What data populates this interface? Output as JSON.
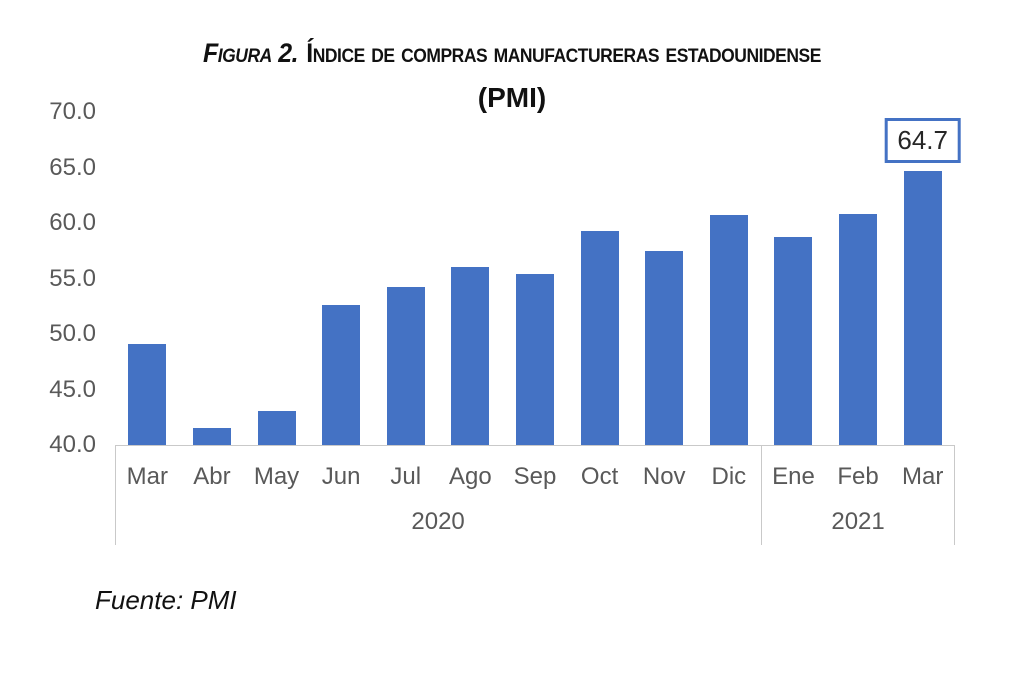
{
  "figure": {
    "title_prefix": "Figura 2.",
    "title_main": "Índice de compras manufactureras estadounidense",
    "subtitle": "(PMI)",
    "source": "Fuente: PMI"
  },
  "chart_data": {
    "type": "bar",
    "title": "Figura 2. Índice de compras manufactureras estadounidense (PMI)",
    "categories": [
      "Mar",
      "Abr",
      "May",
      "Jun",
      "Jul",
      "Ago",
      "Sep",
      "Oct",
      "Nov",
      "Dic",
      "Ene",
      "Feb",
      "Mar"
    ],
    "values": [
      49.1,
      41.5,
      43.1,
      52.6,
      54.2,
      56.0,
      55.4,
      59.3,
      57.5,
      60.7,
      58.7,
      60.8,
      64.7
    ],
    "group_labels": [
      {
        "label": "2020",
        "span": [
          0,
          9
        ]
      },
      {
        "label": "2021",
        "span": [
          10,
          12
        ]
      }
    ],
    "xlabel": "",
    "ylabel": "",
    "ylim": [
      40.0,
      70.0
    ],
    "yticks": [
      70.0,
      65.0,
      60.0,
      55.0,
      50.0,
      45.0,
      40.0
    ],
    "ytick_labels": [
      "70.0",
      "65.0",
      "60.0",
      "55.0",
      "50.0",
      "45.0",
      "40.0"
    ],
    "annotation": {
      "index": 12,
      "label": "64.7"
    },
    "grid": false,
    "legend": false,
    "colors": {
      "bar": "#4472C4",
      "annotation_border": "#4472C4",
      "axis_line": "#c9c9c9",
      "axis_text": "#595959",
      "title_text": "#111111"
    }
  }
}
